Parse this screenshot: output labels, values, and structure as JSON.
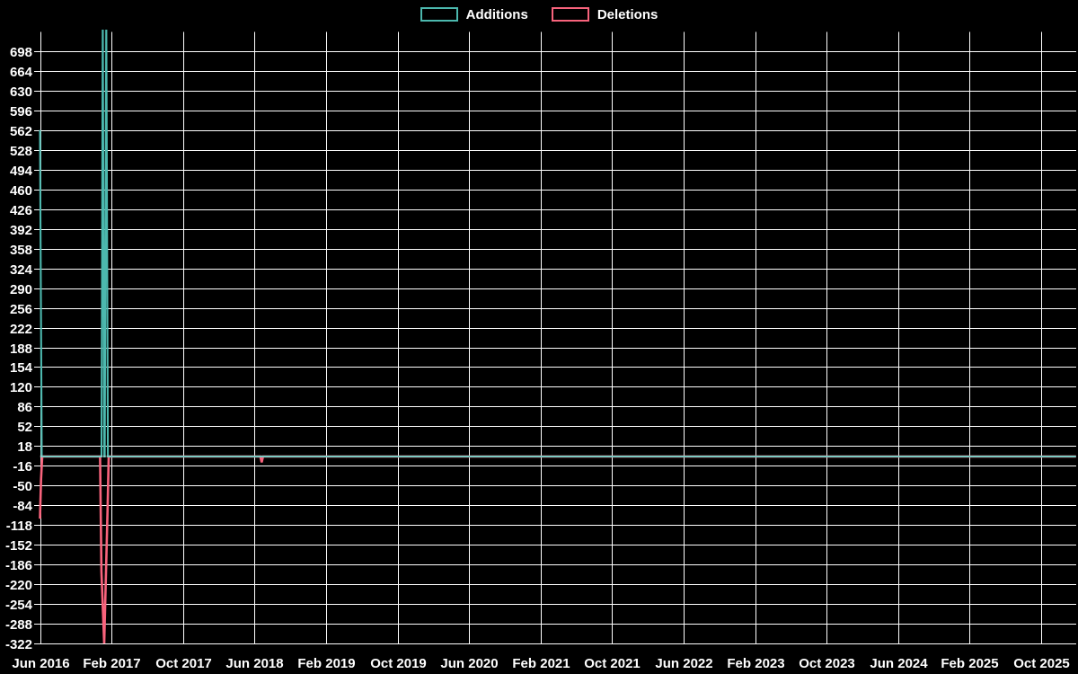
{
  "page": {
    "background_color": "#000000",
    "grid_color": "#ffffff",
    "text_color": "#ffffff"
  },
  "legend": {
    "items": [
      {
        "label": "Additions",
        "color": "#4cb8ae"
      },
      {
        "label": "Deletions",
        "color": "#f8637c"
      }
    ]
  },
  "chart_data": {
    "type": "line",
    "title": "",
    "legend_position": "top-center",
    "grid": true,
    "x_axis": {
      "tick_labels": [
        "Jun 2016",
        "Feb 2017",
        "Oct 2017",
        "Jun 2018",
        "Feb 2019",
        "Oct 2019",
        "Jun 2020",
        "Feb 2021",
        "Oct 2021",
        "Jun 2022",
        "Feb 2023",
        "Oct 2023",
        "Jun 2024",
        "Feb 2025",
        "Oct 2025"
      ],
      "tick_spacing_months": 8,
      "range_months": [
        0,
        115.9
      ]
    },
    "y_axis": {
      "ticks": [
        698,
        664,
        630,
        596,
        562,
        528,
        494,
        460,
        426,
        392,
        358,
        324,
        290,
        256,
        222,
        188,
        154,
        120,
        86,
        52,
        18,
        -16,
        -50,
        -84,
        -118,
        -152,
        -186,
        -220,
        -254,
        -288,
        -322
      ],
      "visible_range": [
        -322,
        731
      ],
      "note": "Additions peaks near Feb 2017 exceed the visible axis and are clipped at the top"
    },
    "series": [
      {
        "name": "Additions",
        "color": "#4cb8ae",
        "points": [
          [
            0,
            562
          ],
          [
            0.2,
            0
          ],
          [
            6.88,
            0
          ],
          [
            7.03,
            765
          ],
          [
            7.2,
            0
          ],
          [
            7.25,
            0
          ],
          [
            7.42,
            765
          ],
          [
            7.6,
            0
          ],
          [
            115.9,
            0
          ]
        ]
      },
      {
        "name": "Deletions",
        "color": "#f8637c",
        "points": [
          [
            0,
            -107
          ],
          [
            0.12,
            -39
          ],
          [
            0.25,
            0
          ],
          [
            6.72,
            0
          ],
          [
            6.87,
            -198
          ],
          [
            7.19,
            -322
          ],
          [
            7.57,
            -88
          ],
          [
            7.69,
            0
          ],
          [
            24.65,
            0
          ],
          [
            24.8,
            -10
          ],
          [
            24.95,
            0
          ],
          [
            115.9,
            0
          ]
        ]
      }
    ]
  }
}
